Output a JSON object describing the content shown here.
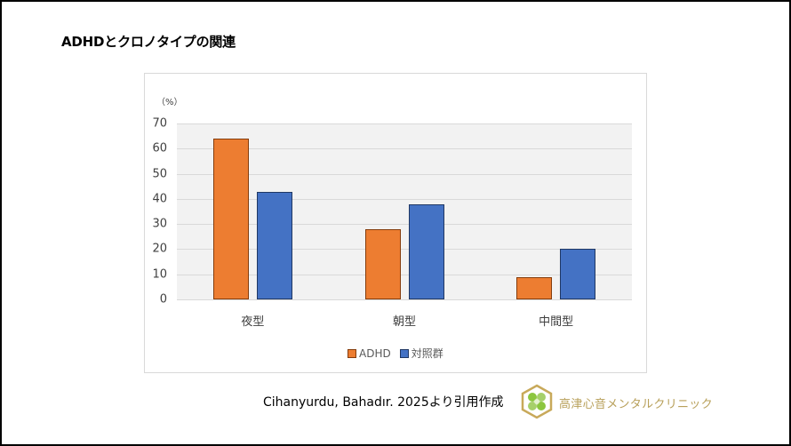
{
  "title": "ADHDとクロノタイプの関連",
  "chart_data": {
    "type": "bar",
    "title": "ADHDとクロノタイプの関連",
    "xlabel": "",
    "ylabel": "(%)",
    "ylim": [
      0,
      70
    ],
    "yticks": [
      0,
      10,
      20,
      30,
      40,
      50,
      60,
      70
    ],
    "grid": true,
    "legend_position": "bottom",
    "categories": [
      "夜型",
      "朝型",
      "中間型"
    ],
    "series": [
      {
        "name": "ADHD",
        "color": "#ed7d31",
        "values": [
          63.8,
          27.6,
          8.5
        ]
      },
      {
        "name": "対照群",
        "color": "#4472c4",
        "values": [
          42.4,
          37.5,
          19.8
        ]
      }
    ]
  },
  "axis": {
    "unit_label": "（%）",
    "ticks": [
      "70",
      "60",
      "50",
      "40",
      "30",
      "20",
      "10",
      "0"
    ]
  },
  "legend": {
    "items": [
      {
        "label": "ADHD",
        "color": "#ed7d31"
      },
      {
        "label": "対照群",
        "color": "#4472c4"
      }
    ]
  },
  "footer": {
    "citation": "Cihanyurdu, Bahadır. 2025より引用作成",
    "clinic_name": "高津心音メンタルクリニック",
    "logo_icon": "hexagon-clover-logo-icon"
  }
}
